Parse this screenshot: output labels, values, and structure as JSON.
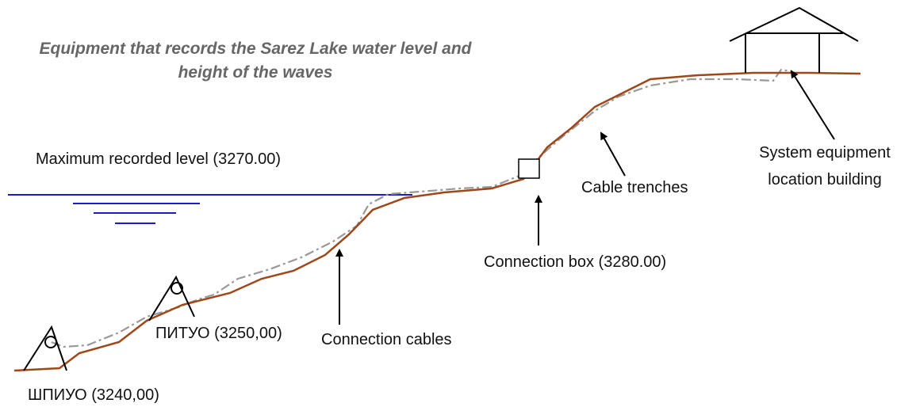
{
  "title": {
    "lines": [
      "Equipment that records the Sarez Lake water level and",
      "height of the waves"
    ]
  },
  "labels": {
    "max_level": "Maximum recorded level (3270.00)",
    "building": [
      "System equipment",
      "location building"
    ],
    "cable_trenches": "Cable trenches",
    "connection_box": "Connection box (3280.00)",
    "pituo": "ПИТУО (3250,00)",
    "connection_cables": "Connection cables",
    "shpiuo": "ШПИУО (3240,00)"
  }
}
